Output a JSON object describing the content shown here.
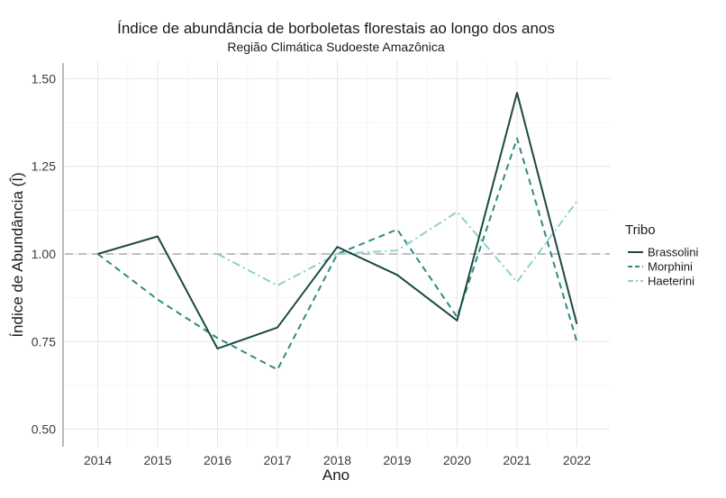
{
  "chart_data": {
    "type": "line",
    "title": "Índice de abundância de borboletas florestais ao longo dos anos",
    "subtitle": "Região Climática Sudoeste Amazônica",
    "xlabel": "Ano",
    "ylabel": "Índice de Abundância (Î)",
    "x": [
      2014,
      2015,
      2016,
      2017,
      2018,
      2019,
      2020,
      2021,
      2022
    ],
    "xlim": [
      2013.45,
      2022.55
    ],
    "ylim": [
      0.45,
      1.55
    ],
    "yticks": [
      "0.50",
      "0.75",
      "1.00",
      "1.25",
      "1.50"
    ],
    "reference_line": 1.0,
    "grid": true,
    "legend": {
      "title": "Tribo",
      "position": "right"
    },
    "series": [
      {
        "name": "Brassolini",
        "color": "#1b4a3f",
        "dash": "solid",
        "values": [
          1.0,
          1.05,
          0.73,
          0.79,
          1.02,
          0.94,
          0.81,
          1.46,
          0.8
        ]
      },
      {
        "name": "Morphini",
        "color": "#2e8b80",
        "dash": "dashed",
        "values": [
          1.0,
          0.87,
          0.76,
          0.67,
          1.0,
          1.07,
          0.82,
          1.33,
          0.75
        ]
      },
      {
        "name": "Haeterini",
        "color": "#8ad3c8",
        "dash": "dotdash",
        "values": [
          null,
          null,
          1.0,
          0.91,
          1.0,
          1.01,
          1.12,
          0.92,
          1.15
        ]
      }
    ]
  }
}
